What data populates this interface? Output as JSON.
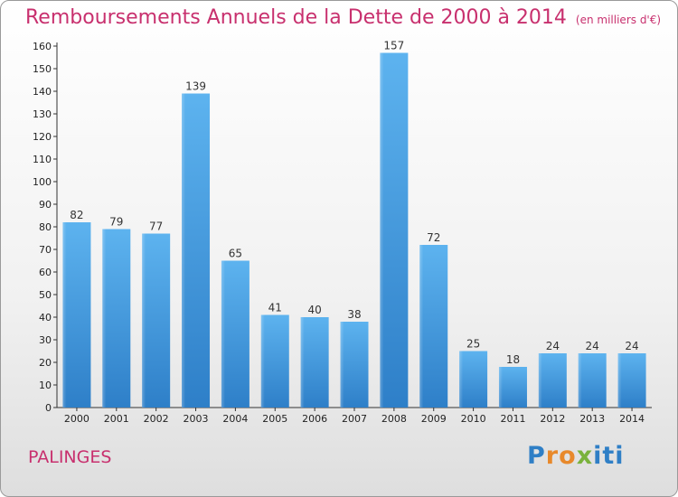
{
  "title": "Remboursements Annuels de la Dette de 2000 à 2014",
  "subtitle": "(en milliers d'€)",
  "commune": "PALINGES",
  "logo": {
    "letters": [
      "P",
      "r",
      "o",
      "x",
      "i",
      "t",
      "i"
    ],
    "colors": [
      "#2f7fc6",
      "#e8892b",
      "#e8892b",
      "#7ab23c",
      "#2f7fc6",
      "#2f7fc6",
      "#2f7fc6"
    ]
  },
  "colors": {
    "title": "#c8306e",
    "bar": "#4a9ee0",
    "axis": "#333333"
  },
  "chart_data": {
    "type": "bar",
    "title": "Remboursements Annuels de la Dette de 2000 à 2014",
    "ylabel": "en milliers d'€",
    "xlabel": "",
    "categories": [
      "2000",
      "2001",
      "2002",
      "2003",
      "2004",
      "2005",
      "2006",
      "2007",
      "2008",
      "2009",
      "2010",
      "2011",
      "2012",
      "2013",
      "2014"
    ],
    "values": [
      82,
      79,
      77,
      139,
      65,
      41,
      40,
      38,
      157,
      72,
      25,
      18,
      24,
      24,
      24
    ],
    "ylim": [
      0,
      160
    ],
    "yticks": [
      0,
      10,
      20,
      30,
      40,
      50,
      60,
      70,
      80,
      90,
      100,
      110,
      120,
      130,
      140,
      150,
      160
    ],
    "grid": false
  }
}
